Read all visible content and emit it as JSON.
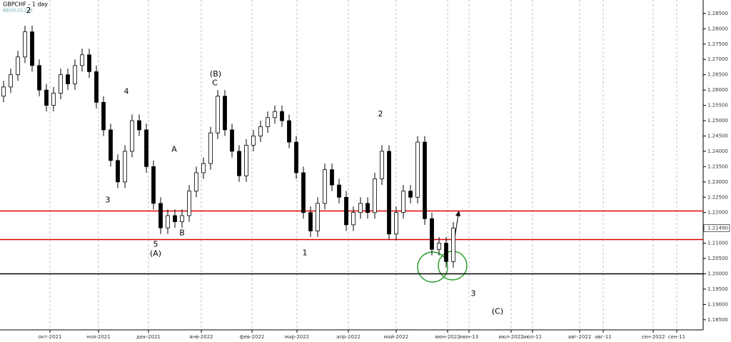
{
  "chart_data": {
    "type": "candlestick",
    "title": "GBPCHF  - 1 day",
    "indicator": "BB(20,20,2,0)",
    "open": [
      1.258,
      1.261,
      1.265,
      1.2708,
      1.279,
      1.268,
      1.26,
      1.255,
      1.259,
      1.265,
      1.262,
      1.268,
      1.2715,
      1.266,
      1.256,
      1.247,
      1.237,
      1.23,
      1.24,
      1.25,
      1.247,
      1.235,
      1.223,
      1.215,
      1.219,
      1.217,
      1.219,
      1.227,
      1.233,
      1.236,
      1.246,
      1.258,
      1.247,
      1.24,
      1.232,
      1.242,
      1.245,
      1.248,
      1.251,
      1.253,
      1.25,
      1.243,
      1.233,
      1.22,
      1.214,
      1.223,
      1.234,
      1.229,
      1.225,
      1.216,
      1.22,
      1.223,
      1.22,
      1.231,
      1.24,
      1.213,
      1.22,
      1.227,
      1.225,
      1.243,
      1.218,
      1.208,
      1.21,
      1.204
    ],
    "high": [
      1.263,
      1.267,
      1.2728,
      1.281,
      1.281,
      1.27,
      1.262,
      1.261,
      1.267,
      1.267,
      1.27,
      1.2735,
      1.2735,
      1.268,
      1.258,
      1.249,
      1.239,
      1.242,
      1.252,
      1.252,
      1.249,
      1.237,
      1.225,
      1.221,
      1.221,
      1.221,
      1.229,
      1.235,
      1.238,
      1.248,
      1.26,
      1.26,
      1.249,
      1.242,
      1.244,
      1.247,
      1.25,
      1.253,
      1.255,
      1.255,
      1.252,
      1.245,
      1.235,
      1.222,
      1.225,
      1.236,
      1.236,
      1.231,
      1.227,
      1.222,
      1.225,
      1.225,
      1.233,
      1.242,
      1.242,
      1.222,
      1.229,
      1.229,
      1.245,
      1.245,
      1.22,
      1.212,
      1.212,
      1.2169
    ],
    "low": [
      1.256,
      1.259,
      1.263,
      1.2688,
      1.266,
      1.258,
      1.253,
      1.253,
      1.257,
      1.26,
      1.26,
      1.266,
      1.264,
      1.254,
      1.245,
      1.235,
      1.228,
      1.228,
      1.238,
      1.245,
      1.233,
      1.221,
      1.213,
      1.213,
      1.215,
      1.215,
      1.217,
      1.225,
      1.231,
      1.234,
      1.244,
      1.245,
      1.238,
      1.23,
      1.23,
      1.24,
      1.243,
      1.246,
      1.249,
      1.248,
      1.241,
      1.231,
      1.218,
      1.212,
      1.212,
      1.221,
      1.227,
      1.223,
      1.214,
      1.214,
      1.218,
      1.218,
      1.218,
      1.229,
      1.211,
      1.211,
      1.218,
      1.223,
      1.223,
      1.216,
      1.206,
      1.206,
      1.202,
      1.202
    ],
    "close": [
      1.261,
      1.265,
      1.2708,
      1.279,
      1.268,
      1.26,
      1.255,
      1.259,
      1.265,
      1.262,
      1.268,
      1.2715,
      1.266,
      1.256,
      1.247,
      1.237,
      1.23,
      1.24,
      1.25,
      1.247,
      1.235,
      1.223,
      1.215,
      1.219,
      1.217,
      1.219,
      1.227,
      1.233,
      1.236,
      1.246,
      1.258,
      1.247,
      1.24,
      1.232,
      1.242,
      1.245,
      1.248,
      1.251,
      1.253,
      1.25,
      1.243,
      1.233,
      1.22,
      1.214,
      1.223,
      1.234,
      1.229,
      1.225,
      1.216,
      1.22,
      1.223,
      1.22,
      1.231,
      1.24,
      1.213,
      1.22,
      1.227,
      1.225,
      1.243,
      1.218,
      1.208,
      1.21,
      1.204,
      1.2149
    ],
    "up_color": "#ffffff",
    "down_color": "#000000",
    "xlim": [
      0,
      98.5
    ],
    "xticks": [
      {
        "value": 7,
        "label": "окт-2021"
      },
      {
        "value": 13.8,
        "label": "ноя-2021"
      },
      {
        "value": 20.8,
        "label": "дек-2021"
      },
      {
        "value": 28.2,
        "label": "янв-2022"
      },
      {
        "value": 35.3,
        "label": "фев-2022"
      },
      {
        "value": 41.6,
        "label": "мар-2022"
      },
      {
        "value": 48.8,
        "label": "апр-2022"
      },
      {
        "value": 55.5,
        "label": "май-2022"
      },
      {
        "value": 62.7,
        "label": "июн-2022"
      },
      {
        "value": 65.7,
        "label": "июн-13"
      },
      {
        "value": 71.6,
        "label": "июл-2022"
      },
      {
        "value": 74.6,
        "label": "июл-11"
      },
      {
        "value": 81.2,
        "label": "авг-2022"
      },
      {
        "value": 84.5,
        "label": "авг-11"
      },
      {
        "value": 91.5,
        "label": "сен-2022"
      },
      {
        "value": 94.8,
        "label": "сен-11"
      }
    ],
    "ylim": [
      1.1817,
      1.2894
    ],
    "yticks": [
      {
        "value": 1.185,
        "label": "1.18500"
      },
      {
        "value": 1.19,
        "label": "1.19000"
      },
      {
        "value": 1.195,
        "label": "1.19500"
      },
      {
        "value": 1.2,
        "label": "1.20000"
      },
      {
        "value": 1.205,
        "label": "1.20500"
      },
      {
        "value": 1.21,
        "label": "1.21000"
      },
      {
        "value": 1.215,
        "label": "1.21500"
      },
      {
        "value": 1.22,
        "label": "1.22000"
      },
      {
        "value": 1.225,
        "label": "1.22500"
      },
      {
        "value": 1.23,
        "label": "1.23000"
      },
      {
        "value": 1.235,
        "label": "1.23500"
      },
      {
        "value": 1.24,
        "label": "1.24000"
      },
      {
        "value": 1.245,
        "label": "1.24500"
      },
      {
        "value": 1.25,
        "label": "1.25000"
      },
      {
        "value": 1.255,
        "label": "1.25500"
      },
      {
        "value": 1.26,
        "label": "1.26000"
      },
      {
        "value": 1.265,
        "label": "1.26500"
      },
      {
        "value": 1.27,
        "label": "1.27000"
      },
      {
        "value": 1.275,
        "label": "1.27500"
      },
      {
        "value": 1.28,
        "label": "1.28000"
      },
      {
        "value": 1.285,
        "label": "1.28500"
      }
    ],
    "last_price": {
      "value": 1.2149,
      "label": "1.21490"
    },
    "levels": [
      {
        "value": 1.2205,
        "color": "#e00000"
      },
      {
        "value": 1.2112,
        "color": "#e00000"
      },
      {
        "value": 1.2,
        "color": "#000000"
      }
    ],
    "annotations": [
      {
        "text": "2",
        "x": 4.0,
        "y": 1.2859
      },
      {
        "text": "4",
        "x": 17.7,
        "y": 1.2594
      },
      {
        "text": "3",
        "x": 15.1,
        "y": 1.224
      },
      {
        "text": "A",
        "x": 24.4,
        "y": 1.2406
      },
      {
        "text": "B",
        "x": 25.5,
        "y": 1.2133
      },
      {
        "text": "5",
        "x": 21.8,
        "y": 1.2096
      },
      {
        "text": "(A)",
        "x": 21.8,
        "y": 1.2065
      },
      {
        "text": "(B)",
        "x": 30.2,
        "y": 1.2652
      },
      {
        "text": "C",
        "x": 30.1,
        "y": 1.2622
      },
      {
        "text": "1",
        "x": 42.7,
        "y": 1.2068
      },
      {
        "text": "2",
        "x": 53.3,
        "y": 1.2521
      },
      {
        "text": "3",
        "x": 66.3,
        "y": 1.1935
      },
      {
        "text": "(C)",
        "x": 69.7,
        "y": 1.1876
      }
    ]
  }
}
